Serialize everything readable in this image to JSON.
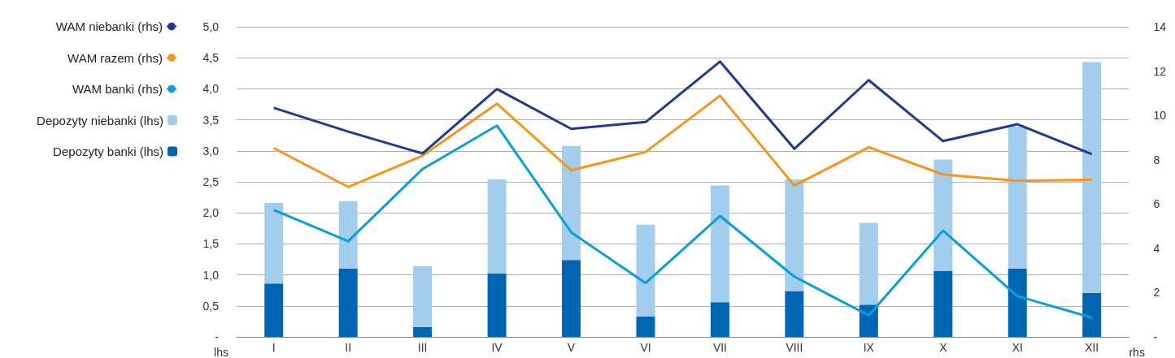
{
  "chart_data": {
    "type": "bar",
    "stacked": true,
    "categories": [
      "I",
      "II",
      "III",
      "IV",
      "V",
      "VI",
      "VII",
      "VIII",
      "IX",
      "X",
      "XI",
      "XII"
    ],
    "ylabel": "lhs",
    "y2label": "rhs",
    "ylim": [
      0,
      5
    ],
    "yticks": [
      {
        "value": 0,
        "label": "-"
      },
      {
        "value": 0.5,
        "label": "0,5"
      },
      {
        "value": 1,
        "label": "1,0"
      },
      {
        "value": 1.5,
        "label": "1,5"
      },
      {
        "value": 2,
        "label": "2,0"
      },
      {
        "value": 2.5,
        "label": "2,5"
      },
      {
        "value": 3,
        "label": "3,0"
      },
      {
        "value": 3.5,
        "label": "3,5"
      },
      {
        "value": 4,
        "label": "4,0"
      },
      {
        "value": 4.5,
        "label": "4,5"
      },
      {
        "value": 5,
        "label": "5,0"
      }
    ],
    "y2lim": [
      0,
      14
    ],
    "y2ticks": [
      {
        "value": 0,
        "label": "-"
      },
      2,
      4,
      6,
      8,
      10,
      12,
      14
    ],
    "grid": "y",
    "legend": "left",
    "series": [
      {
        "name": "Depozyty banki (lhs)",
        "color": "#0066b3",
        "values": [
          0.86,
          1.1,
          0.16,
          1.02,
          1.24,
          0.33,
          0.56,
          0.74,
          0.52,
          1.06,
          1.1,
          0.71
        ]
      },
      {
        "name": "Depozyty niebanki (lhs)",
        "color": "#a2cdec",
        "values": [
          1.3,
          1.09,
          0.98,
          1.52,
          1.84,
          1.48,
          1.88,
          1.8,
          1.32,
          1.8,
          2.29,
          3.72
        ]
      },
      {
        "name": "WAM banki (rhs)",
        "type": "line",
        "axis": "y2",
        "color": "#0a9fdb",
        "values": [
          5.73,
          4.32,
          7.58,
          9.54,
          4.72,
          2.43,
          5.46,
          2.72,
          0.97,
          4.8,
          1.84,
          0.87
        ]
      },
      {
        "name": "WAM razem (rhs)",
        "type": "line",
        "axis": "y2",
        "color": "#f7941d",
        "values": [
          8.52,
          6.77,
          8.18,
          10.53,
          7.52,
          8.35,
          10.89,
          6.83,
          8.56,
          7.33,
          7.05,
          7.09
        ]
      },
      {
        "name": "WAM niebanki (rhs)",
        "type": "line",
        "axis": "y2",
        "color": "#1f3a93",
        "values": [
          10.34,
          9.27,
          8.28,
          11.19,
          9.39,
          9.7,
          12.43,
          8.49,
          11.59,
          8.84,
          9.6,
          8.25
        ]
      }
    ]
  }
}
